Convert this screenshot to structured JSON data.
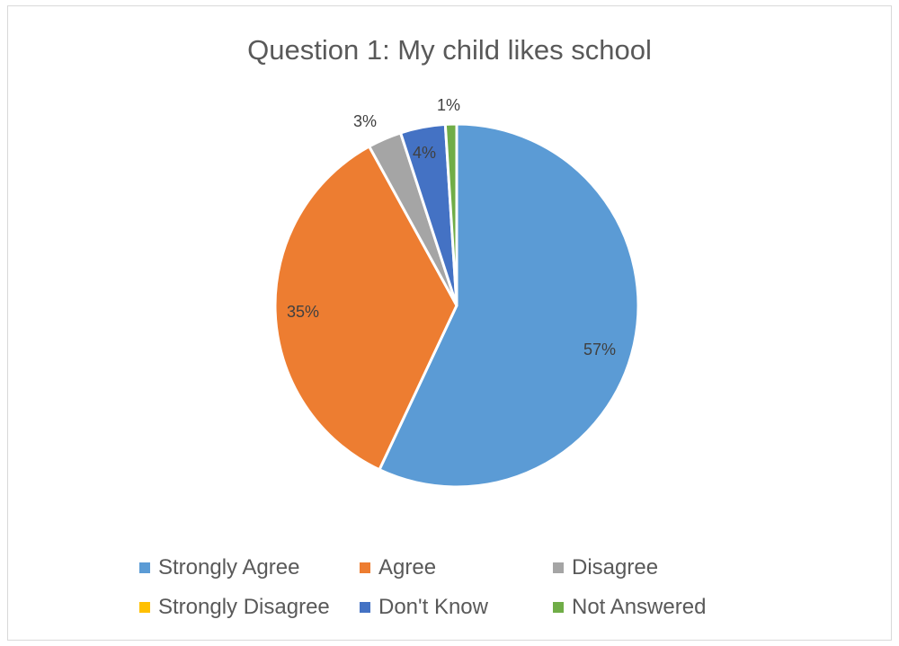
{
  "chart_data": {
    "type": "pie",
    "title": "Question 1: My child likes school",
    "legend_position": "bottom",
    "slices": [
      {
        "name": "Strongly Agree",
        "value": 57,
        "label": "57%",
        "color": "#5B9BD5"
      },
      {
        "name": "Agree",
        "value": 35,
        "label": "35%",
        "color": "#ED7D31"
      },
      {
        "name": "Disagree",
        "value": 3,
        "label": "3%",
        "color": "#A5A5A5"
      },
      {
        "name": "Strongly Disagree",
        "value": 0,
        "label": "",
        "color": "#FFC000"
      },
      {
        "name": "Don't Know",
        "value": 4,
        "label": "4%",
        "color": "#4472C4"
      },
      {
        "name": "Not Answered",
        "value": 1,
        "label": "1%",
        "color": "#70AD47"
      }
    ]
  }
}
